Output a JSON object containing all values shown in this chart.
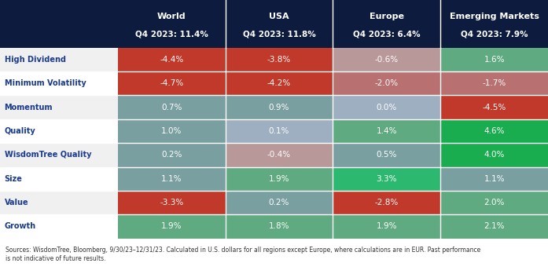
{
  "col_headers": [
    "World",
    "USA",
    "Europe",
    "Emerging Markets"
  ],
  "col_subheaders": [
    "Q4 2023: 11.4%",
    "Q4 2023: 11.8%",
    "Q4 2023: 6.4%",
    "Q4 2023: 7.9%"
  ],
  "row_labels": [
    "High Dividend",
    "Minimum Volatility",
    "Momentum",
    "Quality",
    "WisdomTree Quality",
    "Size",
    "Value",
    "Growth"
  ],
  "values": [
    [
      -4.4,
      -3.8,
      -0.6,
      1.6
    ],
    [
      -4.7,
      -4.2,
      -2.0,
      -1.7
    ],
    [
      0.7,
      0.9,
      0.0,
      -4.5
    ],
    [
      1.0,
      0.1,
      1.4,
      4.6
    ],
    [
      0.2,
      -0.4,
      0.5,
      4.0
    ],
    [
      1.1,
      1.9,
      3.3,
      1.1
    ],
    [
      -3.3,
      0.2,
      -2.8,
      2.0
    ],
    [
      1.9,
      1.8,
      1.9,
      2.1
    ]
  ],
  "value_labels": [
    [
      "-4.4%",
      "-3.8%",
      "-0.6%",
      "1.6%"
    ],
    [
      "-4.7%",
      "-4.2%",
      "-2.0%",
      "-1.7%"
    ],
    [
      "0.7%",
      "0.9%",
      "0.0%",
      "-4.5%"
    ],
    [
      "1.0%",
      "0.1%",
      "1.4%",
      "4.6%"
    ],
    [
      "0.2%",
      "-0.4%",
      "0.5%",
      "4.0%"
    ],
    [
      "1.1%",
      "1.9%",
      "3.3%",
      "1.1%"
    ],
    [
      "-3.3%",
      "0.2%",
      "-2.8%",
      "2.0%"
    ],
    [
      "1.9%",
      "1.8%",
      "1.9%",
      "2.1%"
    ]
  ],
  "header_bg": "#0d1b3e",
  "header_text": "#ffffff",
  "row_label_even_bg": "#f0f0f0",
  "row_label_odd_bg": "#ffffff",
  "row_label_text": "#1a3a8c",
  "footnote": "Sources: WisdomTree, Bloomberg, 9/30/23–12/31/23. Calculated in U.S. dollars for all regions except Europe, where calculations are in EUR. Past performance\nis not indicative of future results.",
  "cell_colors": [
    [
      "#c0392b",
      "#c0392b",
      "#b0b8c4",
      "#6ab58a"
    ],
    [
      "#c0392b",
      "#c0392b",
      "#b87878",
      "#b87878"
    ],
    [
      "#8aaba8",
      "#8aaba8",
      "#b0b8c4",
      "#c0392b"
    ],
    [
      "#8aaba8",
      "#9ab8a8",
      "#8aaba8",
      "#1ea855"
    ],
    [
      "#9ab8a8",
      "#b08888",
      "#9ab8a8",
      "#1ea855"
    ],
    [
      "#8aaba8",
      "#6ab890",
      "#1ea855",
      "#9ab8a8"
    ],
    [
      "#c0392b",
      "#9ab8a8",
      "#c07070",
      "#6ab890"
    ],
    [
      "#6ab890",
      "#6ab890",
      "#6ab890",
      "#6ab890"
    ]
  ]
}
